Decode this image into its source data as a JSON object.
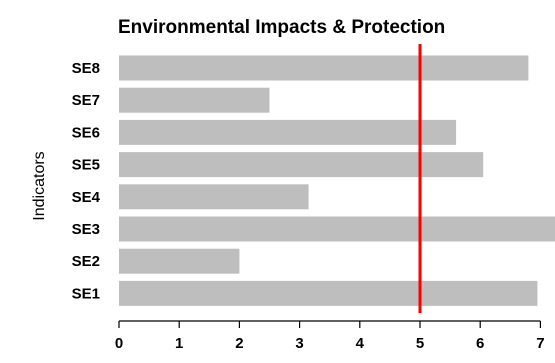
{
  "chart_data": {
    "type": "bar",
    "orientation": "horizontal",
    "title": "Environmental Impacts & Protection",
    "ylabel": "Indicators",
    "xlabel": "",
    "categories": [
      "SE1",
      "SE2",
      "SE3",
      "SE4",
      "SE5",
      "SE6",
      "SE7",
      "SE8"
    ],
    "values": [
      6.95,
      2.0,
      7.35,
      3.15,
      6.05,
      5.6,
      2.5,
      6.8
    ],
    "xlim": [
      0,
      7.3
    ],
    "xticks": [
      "0",
      "1",
      "2",
      "3",
      "4",
      "5",
      "6",
      "7"
    ],
    "reference_line": {
      "x": 5,
      "color": "#ff0000"
    },
    "bar_color": "#bebebe",
    "grid": false
  }
}
